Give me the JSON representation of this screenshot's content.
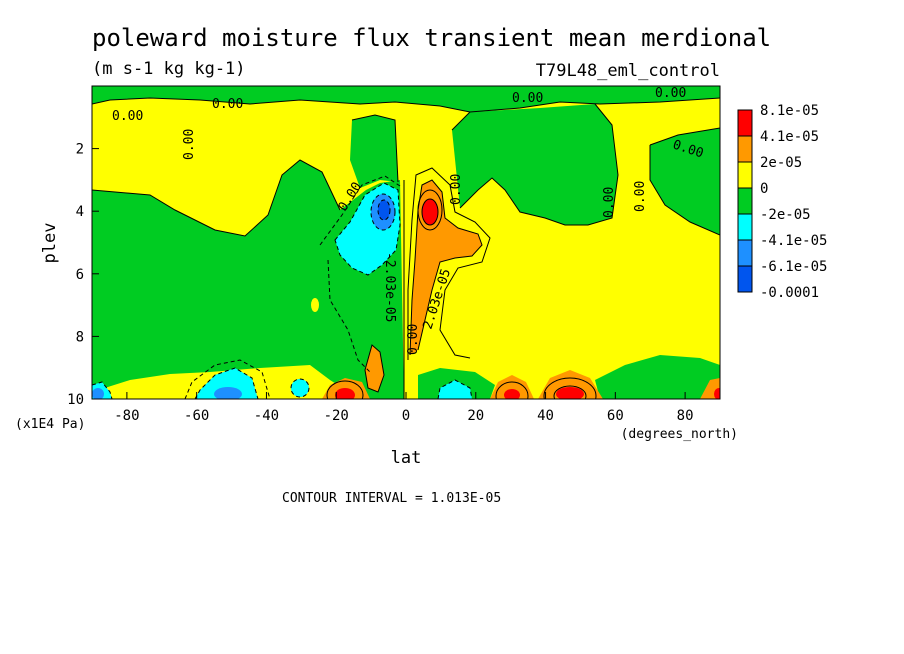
{
  "chart_data": {
    "type": "contour",
    "title": "poleward moisture flux transient mean merdional",
    "units": "(m s-1 kg kg-1)",
    "experiment": "T79L48_eml_control",
    "xlabel": "lat",
    "xunits": "(degrees_north)",
    "ylabel": "plev",
    "yunits": "(x1E4 Pa)",
    "xlim": [
      -90,
      90
    ],
    "ylim": [
      10,
      0
    ],
    "xticks": [
      "-80",
      "-60",
      "-40",
      "-20",
      "0",
      "20",
      "40",
      "60",
      "80"
    ],
    "yticks": [
      "2",
      "4",
      "6",
      "8",
      "10"
    ],
    "contour_interval_text": "CONTOUR INTERVAL = 1.013E-05",
    "contour_labels": [
      "0.00",
      "0.00",
      "0.00",
      "0.00",
      "0.00",
      "0.00",
      "0.00",
      "0.00",
      "0.00",
      "0.00",
      "0.00",
      "-2.03e-05",
      "2.03e-05"
    ],
    "colorbar": {
      "labels": [
        "8.1e-05",
        "4.1e-05",
        "2e-05",
        "0",
        "-2e-05",
        "-4.1e-05",
        "-6.1e-05",
        "-0.0001"
      ],
      "colors": [
        "#ff0000",
        "#ff9900",
        "#ffff00",
        "#00cc22",
        "#00ffff",
        "#1e90ff",
        "#0055ee"
      ]
    },
    "features": [
      {
        "lat": -7,
        "plev": 4.0,
        "value": -7e-05
      },
      {
        "lat": 7,
        "plev": 4.0,
        "value": 8.5e-05
      },
      {
        "lat": 9,
        "plev": 5.5,
        "value": 3e-05
      },
      {
        "lat": -10,
        "plev": 4.5,
        "value": -3e-05
      },
      {
        "lat": -18,
        "plev": 9.9,
        "value": 9e-05
      },
      {
        "lat": 28,
        "plev": 9.9,
        "value": 9e-05
      },
      {
        "lat": 47,
        "plev": 9.9,
        "value": 9e-05
      },
      {
        "lat": 89,
        "plev": 9.9,
        "value": 9e-05
      },
      {
        "lat": -45,
        "plev": 9.7,
        "value": -4.5e-05
      },
      {
        "lat": 18,
        "plev": 9.8,
        "value": -5e-05
      },
      {
        "lat": -88,
        "plev": 9.8,
        "value": -4e-05
      },
      {
        "lat": -9,
        "plev": 8.7,
        "value": 3e-05
      }
    ]
  }
}
